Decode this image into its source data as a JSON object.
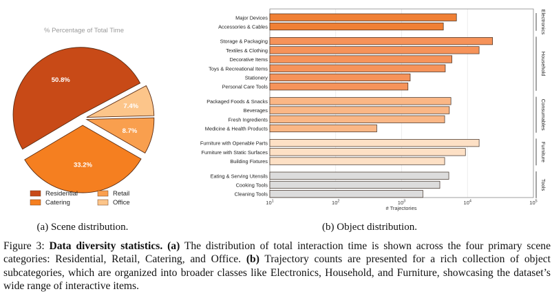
{
  "chart_data": [
    {
      "type": "pie",
      "title": "% Percentage of Total Time",
      "subcaption": "(a) Scene distribution.",
      "slices": [
        {
          "label": "Residential",
          "value": 50.8,
          "value_label": "50.8%",
          "color": "#c84a17"
        },
        {
          "label": "Catering",
          "value": 33.2,
          "value_label": "33.2%",
          "color": "#f57f20"
        },
        {
          "label": "Retail",
          "value": 8.7,
          "value_label": "8.7%",
          "color": "#f99f4e"
        },
        {
          "label": "Office",
          "value": 7.4,
          "value_label": "7.4%",
          "color": "#fcc58a"
        }
      ],
      "legend": {
        "placement": "bottom",
        "entries": [
          "Residential",
          "Retail",
          "Catering",
          "Office"
        ]
      }
    },
    {
      "type": "bar",
      "orientation": "horizontal",
      "subcaption": "(b) Object distribution.",
      "xlabel": "# Trajectories",
      "xscale": "log",
      "xlim": [
        10,
        100000
      ],
      "xticks": [
        10,
        100,
        1000,
        10000,
        100000
      ],
      "grid": true,
      "groups": [
        {
          "name": "Electronics",
          "color": "#f08035",
          "bars": [
            {
              "label": "Major Devices",
              "value": 6800
            },
            {
              "label": "Accessories & Cables",
              "value": 4300
            }
          ]
        },
        {
          "name": "Household",
          "color": "#f6935a",
          "bars": [
            {
              "label": "Storage & Packaging",
              "value": 24000
            },
            {
              "label": "Textiles & Clothing",
              "value": 15000
            },
            {
              "label": "Decorative Items",
              "value": 5800
            },
            {
              "label": "Toys & Recreational Items",
              "value": 4600
            },
            {
              "label": "Stationery",
              "value": 1350
            },
            {
              "label": "Personal Care Tools",
              "value": 1250
            }
          ]
        },
        {
          "name": "Consumables",
          "color": "#fab786",
          "bars": [
            {
              "label": "Packaged Foods & Snacks",
              "value": 5600
            },
            {
              "label": "Beverages",
              "value": 5300
            },
            {
              "label": "Fresh Ingredients",
              "value": 4500
            },
            {
              "label": "Medicine & Health Products",
              "value": 420
            }
          ]
        },
        {
          "name": "Furniture",
          "color": "#fde0c5",
          "bars": [
            {
              "label": "Furniture with Openable Parts",
              "value": 15000
            },
            {
              "label": "Furniture with Static Surfaces",
              "value": 9300
            },
            {
              "label": "Building Fixtures",
              "value": 4500
            }
          ]
        },
        {
          "name": "Tools",
          "color": "#dcdcdc",
          "bars": [
            {
              "label": "Eating & Serving Utensils",
              "value": 5200
            },
            {
              "label": "Cooking Tools",
              "value": 3800
            },
            {
              "label": "Cleaning Tools",
              "value": 2100
            }
          ]
        }
      ]
    }
  ],
  "caption": {
    "prefix": "Figure 3: ",
    "bold_title": "Data diversity statistics.",
    "part_a_label": "(a)",
    "part_a_text": " The distribution of total interaction time is shown across the four primary scene categories: Residential, Retail, Catering, and Office. ",
    "part_b_label": "(b)",
    "part_b_text": " Trajectory counts are presented for a rich collection of object subcategories, which are organized into broader classes like Electronics, Household, and Furniture, showcasing the dataset’s wide range of interactive items."
  }
}
